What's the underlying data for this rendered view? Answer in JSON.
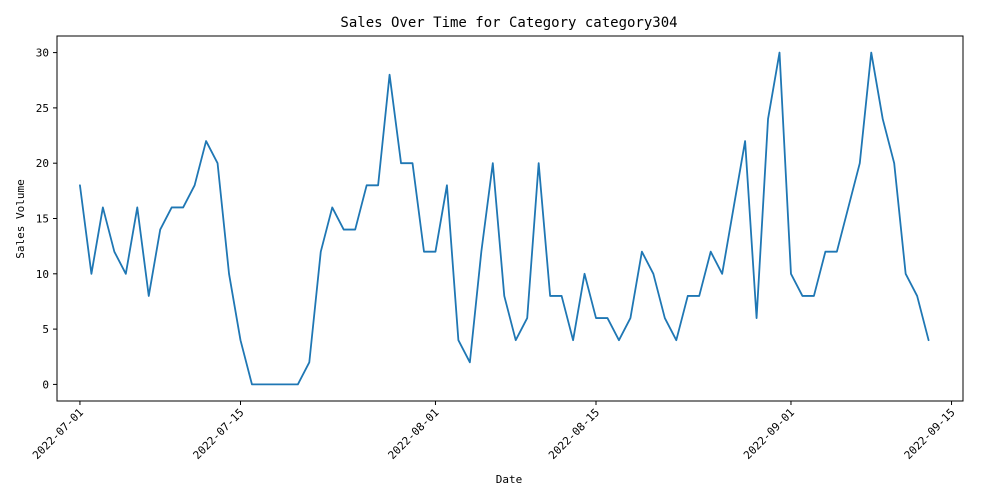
{
  "chart_data": {
    "type": "line",
    "title": "Sales Over Time for Category category304",
    "xlabel": "Date",
    "ylabel": "Sales Volume",
    "x_ticks": [
      "2022-07-01",
      "2022-07-15",
      "2022-08-01",
      "2022-08-15",
      "2022-09-01",
      "2022-09-15"
    ],
    "y_ticks": [
      0,
      5,
      10,
      15,
      20,
      25,
      30
    ],
    "xlim": [
      "2022-06-29",
      "2022-09-16"
    ],
    "ylim": [
      -1.5,
      31.5
    ],
    "grid": false,
    "series": [
      {
        "color": "#1f77b4",
        "x": [
          "2022-07-01",
          "2022-07-02",
          "2022-07-03",
          "2022-07-04",
          "2022-07-05",
          "2022-07-06",
          "2022-07-07",
          "2022-07-08",
          "2022-07-09",
          "2022-07-10",
          "2022-07-11",
          "2022-07-12",
          "2022-07-13",
          "2022-07-14",
          "2022-07-15",
          "2022-07-16",
          "2022-07-17",
          "2022-07-18",
          "2022-07-19",
          "2022-07-20",
          "2022-07-21",
          "2022-07-22",
          "2022-07-23",
          "2022-07-24",
          "2022-07-25",
          "2022-07-26",
          "2022-07-27",
          "2022-07-28",
          "2022-07-29",
          "2022-07-30",
          "2022-07-31",
          "2022-08-01",
          "2022-08-02",
          "2022-08-03",
          "2022-08-04",
          "2022-08-05",
          "2022-08-06",
          "2022-08-07",
          "2022-08-08",
          "2022-08-09",
          "2022-08-10",
          "2022-08-11",
          "2022-08-12",
          "2022-08-13",
          "2022-08-14",
          "2022-08-15",
          "2022-08-16",
          "2022-08-17",
          "2022-08-18",
          "2022-08-19",
          "2022-08-20",
          "2022-08-21",
          "2022-08-22",
          "2022-08-23",
          "2022-08-24",
          "2022-08-25",
          "2022-08-26",
          "2022-08-27",
          "2022-08-28",
          "2022-08-29",
          "2022-08-30",
          "2022-08-31",
          "2022-09-01",
          "2022-09-02",
          "2022-09-03",
          "2022-09-04",
          "2022-09-05",
          "2022-09-06",
          "2022-09-07",
          "2022-09-08",
          "2022-09-09",
          "2022-09-10",
          "2022-09-11",
          "2022-09-12",
          "2022-09-13"
        ],
        "values": [
          18,
          10,
          16,
          12,
          10,
          16,
          8,
          14,
          16,
          16,
          18,
          22,
          20,
          10,
          4,
          0,
          0,
          0,
          0,
          0,
          2,
          12,
          16,
          14,
          14,
          18,
          18,
          28,
          20,
          20,
          12,
          12,
          18,
          4,
          2,
          12,
          20,
          8,
          4,
          6,
          20,
          8,
          8,
          4,
          10,
          6,
          6,
          4,
          6,
          12,
          10,
          6,
          4,
          8,
          8,
          12,
          10,
          16,
          22,
          6,
          24,
          30,
          10,
          8,
          8,
          12,
          12,
          16,
          20,
          30,
          24,
          20,
          10,
          8,
          4
        ]
      }
    ]
  }
}
